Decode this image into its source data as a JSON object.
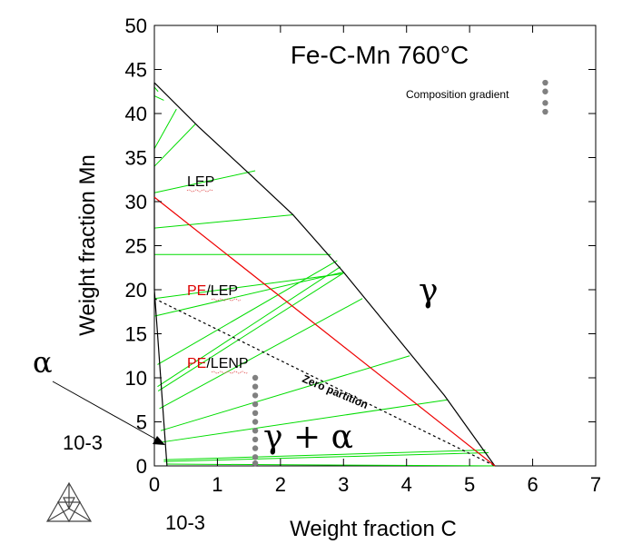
{
  "chart_data": {
    "type": "line",
    "title": "Fe-C-Mn 760°C",
    "xlabel": "Weight fraction C",
    "ylabel": "Weight fraction Mn",
    "x_scale_label": "10-3",
    "y_scale_label": "10-3",
    "xlim": [
      0,
      7
    ],
    "ylim": [
      0,
      50
    ],
    "x_ticks": [
      0,
      1,
      2,
      3,
      4,
      5,
      6,
      7
    ],
    "y_ticks": [
      0,
      5,
      10,
      15,
      20,
      25,
      30,
      35,
      40,
      45,
      50
    ],
    "series": [
      {
        "role": "gamma-boundary",
        "color": "#000000",
        "x": [
          0.0,
          0.7,
          1.5,
          2.2,
          3.0,
          3.8,
          4.6,
          5.4
        ],
        "y": [
          43.5,
          38.5,
          33.2,
          28.5,
          22.0,
          15.0,
          8.0,
          0.0
        ]
      },
      {
        "role": "alpha-boundary",
        "color": "#000000",
        "x": [
          0.2,
          0.15,
          0.1,
          0.05,
          0.0,
          0.0
        ],
        "y": [
          0.0,
          5.0,
          10.0,
          15.0,
          20.0,
          43.5
        ]
      },
      {
        "role": "zero-partition",
        "color": "#000000",
        "dashed": true,
        "x": [
          0.0,
          5.4
        ],
        "y": [
          19.0,
          0.0
        ]
      },
      {
        "role": "pe-line",
        "color": "#ee0000",
        "x": [
          0.0,
          5.4
        ],
        "y": [
          30.5,
          0.0
        ]
      }
    ],
    "tie_lines": {
      "color": "#00dd00",
      "segments": [
        [
          [
            0.0,
            43.0
          ],
          [
            0.06,
            42.5
          ]
        ],
        [
          [
            0.0,
            42.0
          ],
          [
            0.15,
            41.5
          ]
        ],
        [
          [
            0.0,
            36.0
          ],
          [
            0.35,
            40.5
          ]
        ],
        [
          [
            0.0,
            34.0
          ],
          [
            0.65,
            38.8
          ]
        ],
        [
          [
            0.0,
            31.0
          ],
          [
            1.6,
            33.5
          ]
        ],
        [
          [
            0.0,
            27.0
          ],
          [
            2.2,
            28.5
          ]
        ],
        [
          [
            0.0,
            24.0
          ],
          [
            2.8,
            24.0
          ]
        ],
        [
          [
            0.0,
            19.0
          ],
          [
            2.98,
            21.8
          ]
        ],
        [
          [
            0.0,
            17.0
          ],
          [
            3.0,
            22.0
          ]
        ],
        [
          [
            0.05,
            11.5
          ],
          [
            2.9,
            23.3
          ]
        ],
        [
          [
            0.05,
            9.0
          ],
          [
            2.95,
            22.6
          ]
        ],
        [
          [
            0.06,
            8.5
          ],
          [
            3.0,
            21.9
          ]
        ],
        [
          [
            0.08,
            6.5
          ],
          [
            3.3,
            19.0
          ]
        ],
        [
          [
            0.1,
            4.0
          ],
          [
            4.05,
            12.5
          ]
        ],
        [
          [
            0.12,
            2.7
          ],
          [
            4.65,
            7.5
          ]
        ],
        [
          [
            0.15,
            0.7
          ],
          [
            5.25,
            1.8
          ]
        ],
        [
          [
            0.15,
            0.5
          ],
          [
            5.3,
            1.5
          ]
        ],
        [
          [
            0.2,
            0.2
          ],
          [
            5.4,
            0.0
          ]
        ]
      ]
    },
    "composition_gradient": [
      {
        "x": 6.2,
        "y": [
          43.5,
          42.5,
          41.2,
          40.2
        ]
      },
      {
        "x": 1.6,
        "y": [
          10.0,
          9.0,
          8.0,
          7.0,
          6.0,
          5.0,
          4.0,
          3.0,
          2.0,
          1.0,
          0.3
        ]
      }
    ]
  },
  "labels": {
    "title": "Fe-C-Mn 760°C",
    "lep": "LEP",
    "pe_lep_pe": "PE",
    "pe_lep_rest": "/LEP",
    "pe_lenp_pe": "PE",
    "pe_lenp_rest": "/LENP",
    "zero_partition": "Zero partition",
    "gamma": "γ",
    "gamma_alpha": "γ + α",
    "alpha": "α",
    "composition_gradient": "Composition gradient",
    "scale_y": "10-3",
    "scale_x": "10-3",
    "xlabel": "Weight fraction C",
    "ylabel": "Weight fraction Mn"
  },
  "colors": {
    "tie_line": "#00dd00",
    "pe_line": "#ee0000",
    "gradient_dots": "#808080"
  }
}
